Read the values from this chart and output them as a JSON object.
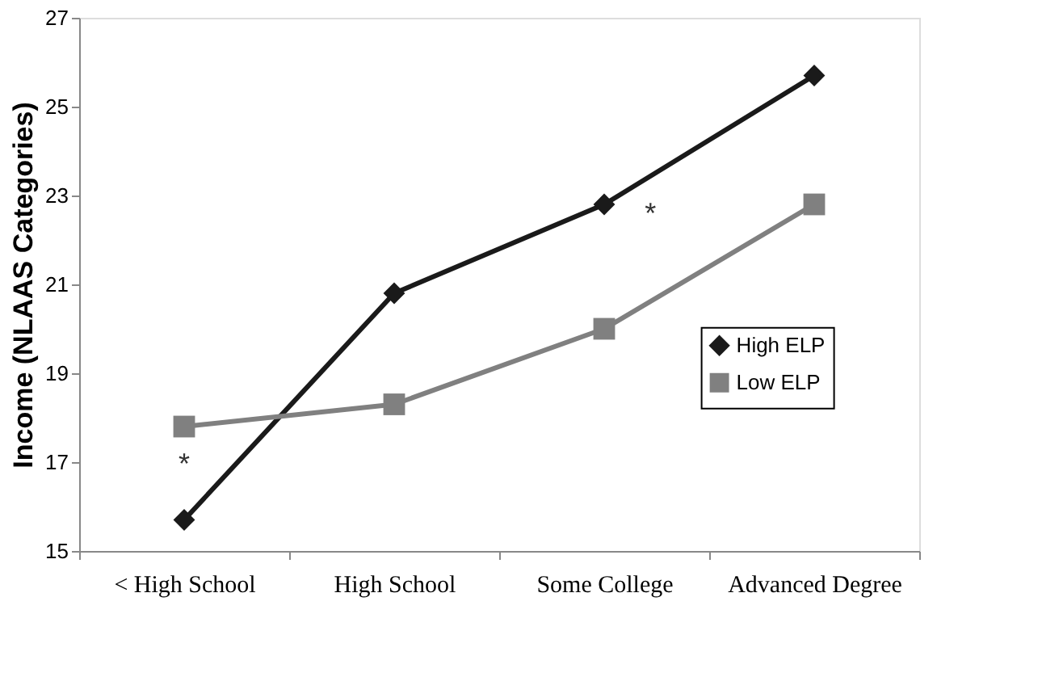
{
  "chart_data": {
    "type": "line",
    "ylabel": "Income (NLAAS Categories)",
    "categories": [
      "< High School",
      "High School",
      "Some College",
      "Advanced Degree"
    ],
    "series": [
      {
        "name": "High ELP",
        "color": "#1a1a1a",
        "marker": "diamond",
        "values": [
          15.7,
          20.8,
          22.8,
          25.7
        ]
      },
      {
        "name": "Low ELP",
        "color": "#808080",
        "marker": "square",
        "values": [
          17.8,
          18.3,
          20.0,
          22.8
        ]
      }
    ],
    "ylim": [
      15,
      27
    ],
    "yticks": [
      15,
      17,
      19,
      21,
      23,
      25,
      27
    ],
    "grid": false,
    "legend": "right",
    "annotations": [
      "*",
      "*"
    ]
  }
}
